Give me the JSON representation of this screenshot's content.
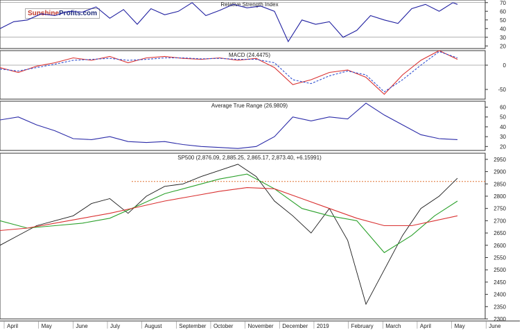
{
  "logo": {
    "part1": "Sunshine",
    "part2": "Profits.com"
  },
  "chart_data": [
    {
      "type": "line",
      "title": "Relative Strength Index",
      "yticks": [
        70,
        60,
        50,
        40,
        30,
        20
      ],
      "ylim": [
        17,
        73
      ],
      "ref_lines": [
        70,
        30
      ],
      "series": [
        {
          "x": [
            0,
            0.03,
            0.06,
            0.09,
            0.12,
            0.15,
            0.18,
            0.21,
            0.24,
            0.27,
            0.3,
            0.33,
            0.36,
            0.39,
            0.42,
            0.45,
            0.48,
            0.51,
            0.54,
            0.57,
            0.6,
            0.63,
            0.66,
            0.69,
            0.72,
            0.75,
            0.78,
            0.81,
            0.84,
            0.87,
            0.9,
            0.93,
            0.96,
            0.99,
            1.0
          ],
          "values": [
            40,
            48,
            50,
            57,
            55,
            60,
            59,
            65,
            52,
            62,
            45,
            63,
            56,
            60,
            70,
            55,
            61,
            68,
            64,
            66,
            60,
            25,
            50,
            45,
            48,
            30,
            38,
            55,
            50,
            46,
            63,
            68,
            60,
            70,
            68
          ]
        }
      ]
    },
    {
      "type": "line",
      "title": "MACD (24.4475)",
      "yticks": [
        0,
        -50
      ],
      "ylim": [
        -70,
        30
      ],
      "ref_lines": [
        0
      ],
      "series": [
        {
          "x": [
            0,
            0.04,
            0.08,
            0.12,
            0.16,
            0.2,
            0.24,
            0.28,
            0.32,
            0.36,
            0.4,
            0.44,
            0.48,
            0.52,
            0.56,
            0.6,
            0.64,
            0.68,
            0.72,
            0.76,
            0.8,
            0.84,
            0.88,
            0.92,
            0.96,
            1.0
          ],
          "values": [
            -5,
            -15,
            -2,
            5,
            15,
            10,
            18,
            5,
            15,
            18,
            14,
            12,
            15,
            10,
            14,
            -5,
            -40,
            -30,
            -15,
            -10,
            -25,
            -60,
            -20,
            10,
            30,
            12
          ]
        },
        {
          "x": [
            0,
            0.04,
            0.08,
            0.12,
            0.16,
            0.2,
            0.24,
            0.28,
            0.32,
            0.36,
            0.4,
            0.44,
            0.48,
            0.52,
            0.56,
            0.6,
            0.64,
            0.68,
            0.72,
            0.76,
            0.8,
            0.84,
            0.88,
            0.92,
            0.96,
            1.0
          ],
          "values": [
            -8,
            -12,
            -5,
            2,
            10,
            12,
            14,
            10,
            12,
            15,
            15,
            13,
            14,
            12,
            12,
            5,
            -30,
            -38,
            -22,
            -12,
            -20,
            -55,
            -30,
            0,
            28,
            15
          ]
        }
      ]
    },
    {
      "type": "line",
      "title": "Average True Range (26.9809)",
      "yticks": [
        60,
        50,
        40,
        30,
        20
      ],
      "ylim": [
        16,
        66
      ],
      "series": [
        {
          "x": [
            0,
            0.04,
            0.08,
            0.12,
            0.16,
            0.2,
            0.24,
            0.28,
            0.32,
            0.36,
            0.4,
            0.44,
            0.48,
            0.52,
            0.56,
            0.6,
            0.64,
            0.68,
            0.72,
            0.76,
            0.8,
            0.84,
            0.88,
            0.92,
            0.96,
            1.0
          ],
          "values": [
            47,
            50,
            42,
            36,
            28,
            27,
            30,
            25,
            24,
            25,
            22,
            20,
            19,
            18,
            20,
            30,
            50,
            46,
            50,
            48,
            64,
            52,
            42,
            32,
            28,
            27
          ]
        }
      ]
    },
    {
      "type": "line",
      "title": "SP500 (2,876.09, 2,885.25, 2,865.17, 2,873.40, +6.15991)",
      "yticks": [
        2950,
        2900,
        2850,
        2800,
        2750,
        2700,
        2650,
        2600,
        2550,
        2500,
        2450,
        2400,
        2350,
        2300
      ],
      "ylim": [
        2300,
        2975
      ],
      "x_months": [
        "April",
        "May",
        "June",
        "July",
        "August",
        "September",
        "October",
        "November",
        "December",
        "2019",
        "February",
        "March",
        "April",
        "May",
        "June"
      ],
      "resistance_level": 2860,
      "series": [
        {
          "x": [
            0,
            0.04,
            0.08,
            0.12,
            0.16,
            0.2,
            0.24,
            0.28,
            0.32,
            0.36,
            0.4,
            0.44,
            0.48,
            0.52,
            0.56,
            0.6,
            0.64,
            0.68,
            0.72,
            0.76,
            0.8,
            0.84,
            0.88,
            0.92,
            0.96,
            1.0
          ],
          "values": [
            2600,
            2640,
            2680,
            2700,
            2720,
            2770,
            2790,
            2730,
            2800,
            2840,
            2850,
            2880,
            2905,
            2930,
            2880,
            2780,
            2720,
            2650,
            2750,
            2620,
            2360,
            2500,
            2640,
            2750,
            2800,
            2873
          ]
        },
        {
          "x": [
            0,
            0.06,
            0.12,
            0.18,
            0.24,
            0.3,
            0.36,
            0.42,
            0.48,
            0.54,
            0.6,
            0.66,
            0.72,
            0.78,
            0.84,
            0.9,
            0.95,
            1.0
          ],
          "values": [
            2700,
            2670,
            2680,
            2690,
            2710,
            2760,
            2810,
            2840,
            2870,
            2890,
            2830,
            2750,
            2720,
            2700,
            2570,
            2640,
            2720,
            2780
          ]
        },
        {
          "x": [
            0,
            0.06,
            0.12,
            0.18,
            0.24,
            0.3,
            0.36,
            0.42,
            0.48,
            0.54,
            0.6,
            0.66,
            0.72,
            0.78,
            0.84,
            0.9,
            0.95,
            1.0
          ],
          "values": [
            2660,
            2670,
            2690,
            2710,
            2730,
            2755,
            2780,
            2800,
            2820,
            2835,
            2830,
            2790,
            2750,
            2710,
            2680,
            2680,
            2700,
            2720
          ]
        }
      ]
    }
  ]
}
